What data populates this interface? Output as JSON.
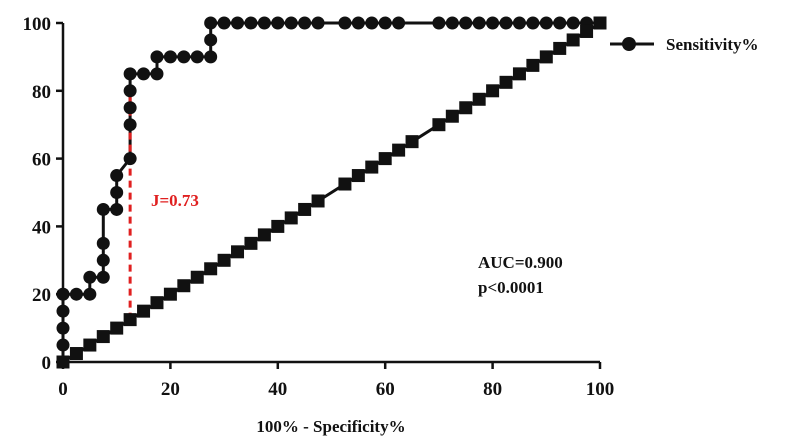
{
  "chart_data": {
    "type": "line",
    "xlabel": "100% - Specificity%",
    "ylabel": "",
    "xlim": [
      0,
      100
    ],
    "ylim": [
      0,
      100
    ],
    "x_ticks": [
      "0",
      "20",
      "40",
      "60",
      "80",
      "100"
    ],
    "y_ticks": [
      "0",
      "20",
      "40",
      "60",
      "80",
      "100"
    ],
    "grid": false,
    "legend_position": "top-right",
    "series": [
      {
        "name": "Sensitivity%",
        "marker": "circle",
        "color": "#111111",
        "step": true,
        "x": [
          0,
          0,
          0,
          0,
          0,
          0,
          2.5,
          5,
          5,
          7.5,
          7.5,
          7.5,
          7.5,
          10,
          10,
          10,
          12.5,
          12.5,
          12.5,
          12.5,
          12.5,
          15,
          17.5,
          17.5,
          20,
          22.5,
          25,
          27.5,
          27.5,
          27.5,
          30,
          32.5,
          35,
          37.5,
          40,
          42.5,
          45,
          47.5,
          52.5,
          55,
          57.5,
          60,
          62.5,
          70,
          72.5,
          75,
          77.5,
          80,
          82.5,
          85,
          87.5,
          90,
          92.5,
          95,
          97.5,
          100
        ],
        "y": [
          0,
          5,
          10,
          15,
          20,
          20,
          20,
          20,
          25,
          25,
          30,
          35,
          45,
          45,
          50,
          55,
          60,
          70,
          75,
          80,
          85,
          85,
          85,
          90,
          90,
          90,
          90,
          90,
          95,
          100,
          100,
          100,
          100,
          100,
          100,
          100,
          100,
          100,
          100,
          100,
          100,
          100,
          100,
          100,
          100,
          100,
          100,
          100,
          100,
          100,
          100,
          100,
          100,
          100,
          100,
          100
        ]
      },
      {
        "name": "",
        "marker": "square",
        "color": "#111111",
        "step": false,
        "x": [
          0,
          2.5,
          5,
          7.5,
          10,
          12.5,
          15,
          17.5,
          20,
          22.5,
          25,
          27.5,
          30,
          32.5,
          35,
          37.5,
          40,
          42.5,
          45,
          47.5,
          52.5,
          55,
          57.5,
          60,
          62.5,
          65,
          70,
          72.5,
          75,
          77.5,
          80,
          82.5,
          85,
          87.5,
          90,
          92.5,
          95,
          97.5,
          100
        ],
        "y": [
          0,
          2.5,
          5,
          7.5,
          10,
          12.5,
          15,
          17.5,
          20,
          22.5,
          25,
          27.5,
          30,
          32.5,
          35,
          37.5,
          40,
          42.5,
          45,
          47.5,
          52.5,
          55,
          57.5,
          60,
          62.5,
          65,
          70,
          72.5,
          75,
          77.5,
          80,
          82.5,
          85,
          87.5,
          90,
          92.5,
          95,
          97.5,
          100
        ]
      }
    ],
    "youden": {
      "x": 12.5,
      "y_from": 12.5,
      "y_to": 85,
      "label": "J=0.73",
      "color": "#e02020"
    },
    "annotations": [
      "AUC=0.900",
      "p<0.0001"
    ]
  }
}
